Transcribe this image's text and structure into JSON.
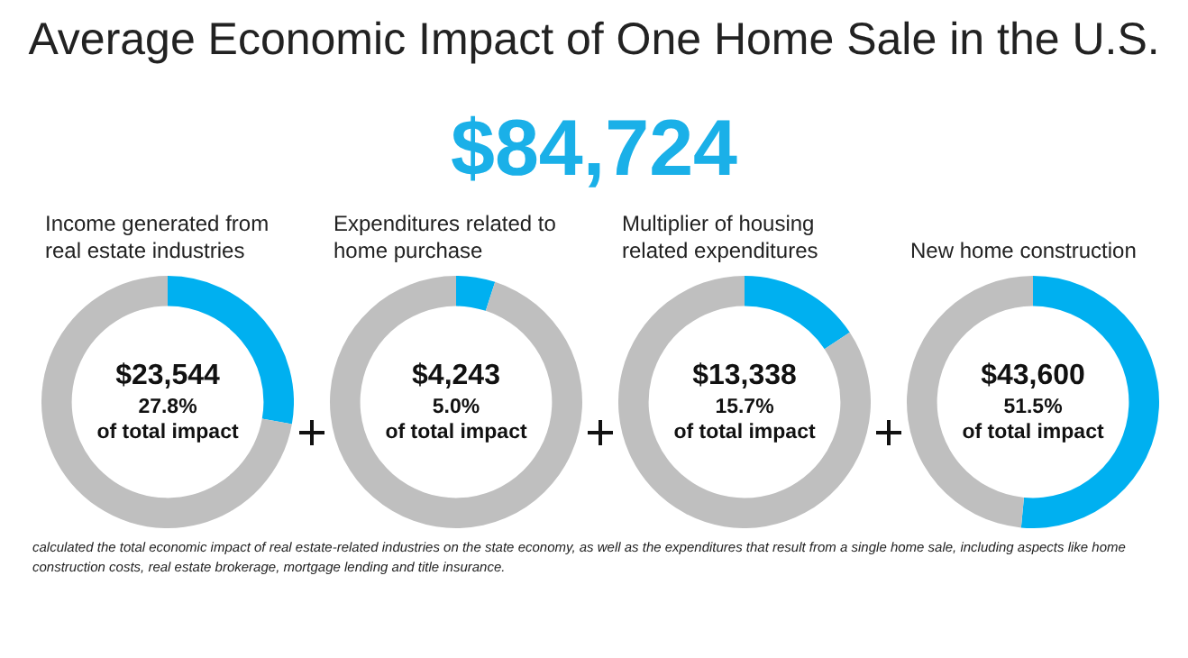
{
  "chart_data": [
    {
      "type": "other",
      "title": "Average Economic Impact of One Home Sale in the U.S.",
      "subtitle": "$84,724",
      "annotations": [
        "calculated the total economic impact of real estate-related industries on the state economy, as well as the expenditures that result from a single home sale, including aspects like home construction costs, real estate brokerage, mortgage lending and title insurance."
      ]
    },
    {
      "type": "donut",
      "title": "Income generated from real estate industries",
      "categories": [
        null,
        null
      ],
      "values": [
        27.8,
        72.2
      ],
      "colors": [
        "#00b0f0",
        "#bfbfbf"
      ],
      "annotations": [
        "$23,544",
        "27.8%",
        "of total impact"
      ]
    },
    {
      "type": "donut",
      "title": "Expenditures related to home purchase",
      "categories": [
        null,
        null
      ],
      "values": [
        5.0,
        95.0
      ],
      "colors": [
        "#00b0f0",
        "#bfbfbf"
      ],
      "annotations": [
        "$4,243",
        "5.0%",
        "of total impact"
      ]
    },
    {
      "type": "donut",
      "title": "Multiplier of housing related expenditures",
      "categories": [
        null,
        null
      ],
      "values": [
        15.7,
        84.3
      ],
      "colors": [
        "#00b0f0",
        "#bfbfbf"
      ],
      "annotations": [
        "$13,338",
        "15.7%",
        "of total impact"
      ]
    },
    {
      "type": "donut",
      "title": "New home construction",
      "categories": [
        null,
        null
      ],
      "values": [
        51.5,
        48.5
      ],
      "colors": [
        "#00b0f0",
        "#bfbfbf"
      ],
      "annotations": [
        "$43,600",
        "51.5%",
        "of total impact"
      ]
    }
  ]
}
